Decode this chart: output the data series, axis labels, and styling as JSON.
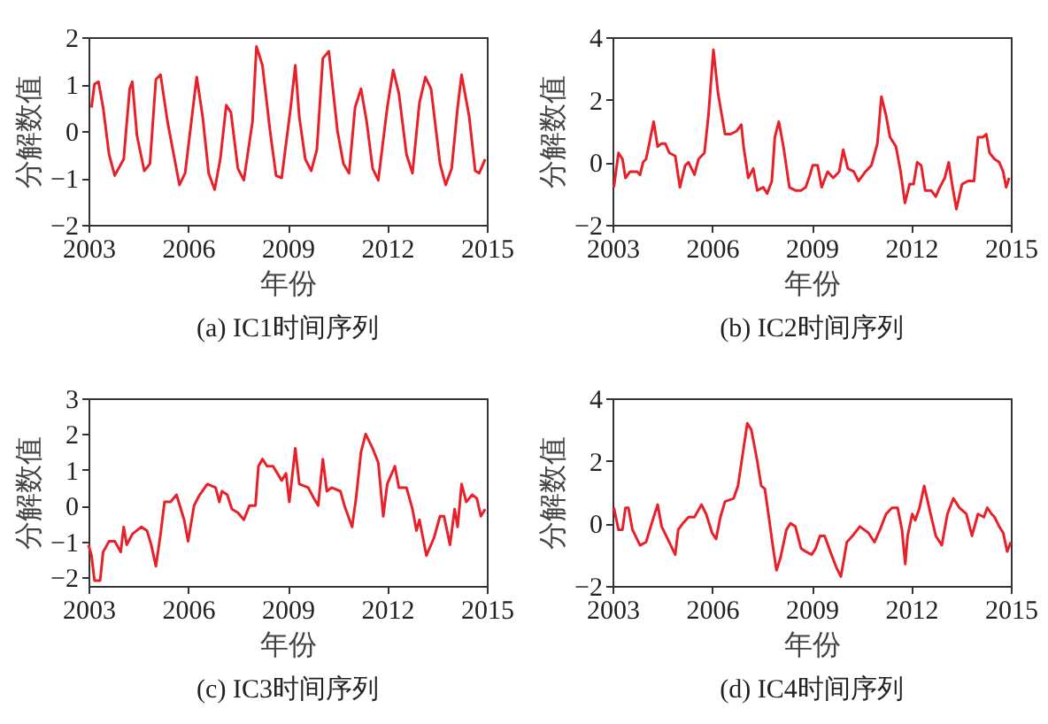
{
  "chart_data": [
    {
      "type": "line",
      "title": "(a) IC1时间序列",
      "xlabel": "年份",
      "ylabel": "分解数值",
      "xlim": [
        2003,
        2015
      ],
      "xticks": [
        2003,
        2006,
        2009,
        2012,
        2015
      ],
      "ylim": [
        -2,
        2
      ],
      "yticks": [
        -2,
        -1,
        0,
        1,
        2
      ],
      "grid": false,
      "x": [
        2003.09,
        2003.18,
        2003.3,
        2003.44,
        2003.62,
        2003.79,
        2004.06,
        2004.24,
        2004.32,
        2004.46,
        2004.68,
        2004.85,
        2005.03,
        2005.17,
        2005.38,
        2005.74,
        2005.91,
        2006.26,
        2006.44,
        2006.62,
        2006.8,
        2006.97,
        2007.15,
        2007.29,
        2007.5,
        2007.68,
        2007.94,
        2008.06,
        2008.24,
        2008.47,
        2008.65,
        2008.82,
        2009.09,
        2009.23,
        2009.35,
        2009.53,
        2009.71,
        2009.88,
        2010.06,
        2010.24,
        2010.5,
        2010.68,
        2010.85,
        2011.03,
        2011.21,
        2011.38,
        2011.56,
        2011.73,
        2012.0,
        2012.18,
        2012.35,
        2012.58,
        2012.76,
        2012.97,
        2013.15,
        2013.32,
        2013.59,
        2013.76,
        2013.94,
        2014.12,
        2014.24,
        2014.47,
        2014.65,
        2014.77,
        2014.95
      ],
      "series": [
        {
          "color": "#e8202a",
          "values": [
            0.5,
            1.0,
            1.05,
            0.5,
            -0.5,
            -0.95,
            -0.6,
            0.9,
            1.05,
            -0.1,
            -0.85,
            -0.7,
            1.1,
            1.2,
            0.2,
            -1.15,
            -0.9,
            1.15,
            0.3,
            -0.9,
            -1.25,
            -0.6,
            0.55,
            0.4,
            -0.8,
            -1.05,
            0.2,
            1.8,
            1.4,
            0,
            -0.95,
            -1.0,
            0.5,
            1.4,
            0.3,
            -0.6,
            -0.85,
            -0.4,
            1.55,
            1.7,
            0,
            -0.7,
            -0.9,
            0.5,
            0.9,
            0.2,
            -0.8,
            -1.05,
            0.5,
            1.3,
            0.8,
            -0.5,
            -0.9,
            0.6,
            1.15,
            0.9,
            -0.7,
            -1.15,
            -0.8,
            0.5,
            1.2,
            0.3,
            -0.85,
            -0.9,
            -0.6
          ]
        }
      ]
    },
    {
      "type": "line",
      "title": "(b) IC2时间序列",
      "xlabel": "年份",
      "ylabel": "分解数值",
      "xlim": [
        2003,
        2015
      ],
      "xticks": [
        2003,
        2006,
        2009,
        2012,
        2015
      ],
      "ylim": [
        -2,
        4
      ],
      "yticks": [
        -2,
        0,
        2,
        4
      ],
      "grid": false,
      "x": [
        2003.04,
        2003.18,
        2003.3,
        2003.39,
        2003.53,
        2003.74,
        2003.83,
        2003.92,
        2004.01,
        2004.09,
        2004.24,
        2004.36,
        2004.48,
        2004.59,
        2004.71,
        2004.89,
        2005.03,
        2005.19,
        2005.29,
        2005.47,
        2005.59,
        2005.77,
        2005.89,
        2006.04,
        2006.18,
        2006.39,
        2006.56,
        2006.74,
        2006.88,
        2006.95,
        2007.09,
        2007.24,
        2007.36,
        2007.54,
        2007.66,
        2007.8,
        2007.89,
        2008.01,
        2008.15,
        2008.33,
        2008.51,
        2008.68,
        2008.82,
        2008.95,
        2009.03,
        2009.18,
        2009.3,
        2009.48,
        2009.65,
        2009.83,
        2009.95,
        2010.09,
        2010.27,
        2010.41,
        2010.62,
        2010.8,
        2010.98,
        2011.1,
        2011.24,
        2011.36,
        2011.54,
        2011.68,
        2011.81,
        2011.95,
        2012.07,
        2012.18,
        2012.3,
        2012.42,
        2012.6,
        2012.74,
        2012.86,
        2013.01,
        2013.13,
        2013.23,
        2013.36,
        2013.53,
        2013.71,
        2013.89,
        2014.01,
        2014.15,
        2014.26,
        2014.36,
        2014.51,
        2014.65,
        2014.77,
        2014.86,
        2014.95
      ],
      "series": [
        {
          "color": "#e8202a",
          "values": [
            -0.8,
            0.3,
            0.1,
            -0.5,
            -0.3,
            -0.3,
            -0.4,
            0,
            0.1,
            0.5,
            1.3,
            0.5,
            0.6,
            0.6,
            0.3,
            0.2,
            -0.8,
            -0.1,
            0,
            -0.4,
            0.1,
            0.3,
            1.5,
            3.6,
            2.2,
            0.9,
            0.9,
            1.0,
            1.2,
            0.5,
            -0.5,
            -0.2,
            -0.9,
            -0.8,
            -1.0,
            -0.6,
            0.8,
            1.3,
            0.5,
            -0.8,
            -0.9,
            -0.9,
            -0.8,
            -0.4,
            -0.1,
            -0.1,
            -0.8,
            -0.3,
            -0.5,
            -0.3,
            0.4,
            -0.2,
            -0.3,
            -0.6,
            -0.3,
            -0.1,
            0.6,
            2.1,
            1.5,
            0.8,
            0.5,
            -0.3,
            -1.3,
            -0.7,
            -0.7,
            0,
            -0.1,
            -0.9,
            -0.9,
            -1.1,
            -0.8,
            -0.5,
            0,
            -0.7,
            -1.5,
            -0.7,
            -0.6,
            -0.6,
            0.8,
            0.8,
            0.9,
            0.3,
            0.1,
            0,
            -0.3,
            -0.8,
            -0.5
          ]
        }
      ]
    },
    {
      "type": "line",
      "title": "(c) IC3时间序列",
      "xlabel": "年份",
      "ylabel": "分解数值",
      "xlim": [
        2003,
        2015
      ],
      "xticks": [
        2003,
        2006,
        2009,
        2012,
        2015
      ],
      "ylim": [
        -2.25,
        3
      ],
      "yticks": [
        -2,
        -1,
        0,
        1,
        2,
        3
      ],
      "grid": false,
      "x": [
        2003.0,
        2003.09,
        2003.18,
        2003.35,
        2003.44,
        2003.62,
        2003.79,
        2003.97,
        2004.06,
        2004.15,
        2004.32,
        2004.59,
        2004.76,
        2004.89,
        2005.03,
        2005.17,
        2005.29,
        2005.47,
        2005.65,
        2005.88,
        2006.0,
        2006.18,
        2006.35,
        2006.58,
        2006.83,
        2006.94,
        2007.02,
        2007.18,
        2007.32,
        2007.5,
        2007.68,
        2007.85,
        2008.03,
        2008.12,
        2008.24,
        2008.38,
        2008.56,
        2008.82,
        2008.95,
        2009.05,
        2009.23,
        2009.35,
        2009.62,
        2009.79,
        2009.92,
        2010.06,
        2010.18,
        2010.32,
        2010.59,
        2010.71,
        2010.94,
        2011.06,
        2011.21,
        2011.35,
        2011.56,
        2011.73,
        2011.88,
        2012.0,
        2012.23,
        2012.35,
        2012.58,
        2012.76,
        2012.88,
        2012.97,
        2013.18,
        2013.41,
        2013.59,
        2013.71,
        2013.89,
        2014.03,
        2014.12,
        2014.24,
        2014.38,
        2014.56,
        2014.7,
        2014.82,
        2014.95
      ],
      "series": [
        {
          "color": "#e8202a",
          "values": [
            -1.1,
            -1.4,
            -2.1,
            -2.1,
            -1.3,
            -1.0,
            -1.0,
            -1.3,
            -0.6,
            -1.1,
            -0.8,
            -0.6,
            -0.7,
            -1.1,
            -1.7,
            -0.8,
            0.1,
            0.1,
            0.3,
            -0.4,
            -1.0,
            0.0,
            0.3,
            0.6,
            0.5,
            0.1,
            0.4,
            0.3,
            -0.1,
            -0.2,
            -0.4,
            0.0,
            0.0,
            1.1,
            1.3,
            1.1,
            1.1,
            0.7,
            0.9,
            0.1,
            1.6,
            0.6,
            0.5,
            0.2,
            0.0,
            1.3,
            0.4,
            0.5,
            0.4,
            0.0,
            -0.6,
            0.2,
            1.5,
            2.0,
            1.6,
            1.2,
            -0.3,
            0.6,
            1.1,
            0.5,
            0.5,
            -0.1,
            -0.7,
            -0.4,
            -1.4,
            -0.9,
            -0.3,
            -0.3,
            -1.1,
            -0.1,
            -0.6,
            0.6,
            0.1,
            0.3,
            0.2,
            -0.3,
            -0.1
          ]
        }
      ]
    },
    {
      "type": "line",
      "title": "(d) IC4时间序列",
      "xlabel": "年份",
      "ylabel": "分解数值",
      "xlim": [
        2003,
        2015
      ],
      "xticks": [
        2003,
        2006,
        2009,
        2012,
        2015
      ],
      "ylim": [
        -2,
        4
      ],
      "yticks": [
        -2,
        0,
        2,
        4
      ],
      "grid": false,
      "x": [
        2003.04,
        2003.18,
        2003.3,
        2003.39,
        2003.48,
        2003.6,
        2003.83,
        2004.01,
        2004.18,
        2004.36,
        2004.48,
        2004.71,
        2004.89,
        2004.98,
        2005.12,
        2005.29,
        2005.47,
        2005.68,
        2005.82,
        2006.0,
        2006.12,
        2006.25,
        2006.39,
        2006.65,
        2006.78,
        2006.92,
        2007.06,
        2007.18,
        2007.36,
        2007.48,
        2007.59,
        2007.71,
        2007.84,
        2007.94,
        2008.06,
        2008.24,
        2008.36,
        2008.51,
        2008.68,
        2008.82,
        2009.0,
        2009.12,
        2009.25,
        2009.39,
        2009.56,
        2009.74,
        2009.88,
        2010.06,
        2010.23,
        2010.45,
        2010.71,
        2010.89,
        2011.06,
        2011.24,
        2011.42,
        2011.59,
        2011.72,
        2011.82,
        2011.89,
        2012.03,
        2012.12,
        2012.25,
        2012.39,
        2012.56,
        2012.74,
        2012.92,
        2013.09,
        2013.27,
        2013.45,
        2013.66,
        2013.83,
        2014.01,
        2014.19,
        2014.29,
        2014.42,
        2014.51,
        2014.65,
        2014.77,
        2014.89,
        2015.0
      ],
      "series": [
        {
          "color": "#e8202a",
          "values": [
            0.5,
            -0.2,
            -0.2,
            0.5,
            0.5,
            -0.2,
            -0.7,
            -0.6,
            0,
            0.6,
            -0.1,
            -0.6,
            -1.0,
            -0.2,
            0,
            0.2,
            0.2,
            0.6,
            0.3,
            -0.3,
            -0.5,
            0.2,
            0.7,
            0.8,
            1.2,
            2.2,
            3.2,
            3.0,
            2.0,
            1.2,
            1.1,
            0.2,
            -0.8,
            -1.5,
            -1.1,
            -0.2,
            0.0,
            -0.1,
            -0.8,
            -0.9,
            -1.0,
            -0.8,
            -0.4,
            -0.4,
            -0.9,
            -1.4,
            -1.7,
            -0.6,
            -0.4,
            -0.1,
            -0.3,
            -0.6,
            -0.2,
            0.3,
            0.5,
            0.5,
            -0.2,
            -1.3,
            -0.4,
            0.3,
            0.1,
            0.5,
            1.2,
            0.4,
            -0.4,
            -0.7,
            0.3,
            0.8,
            0.5,
            0.3,
            -0.4,
            0.3,
            0.2,
            0.5,
            0.3,
            0.2,
            -0.1,
            -0.3,
            -0.9,
            -0.6
          ]
        }
      ]
    }
  ]
}
